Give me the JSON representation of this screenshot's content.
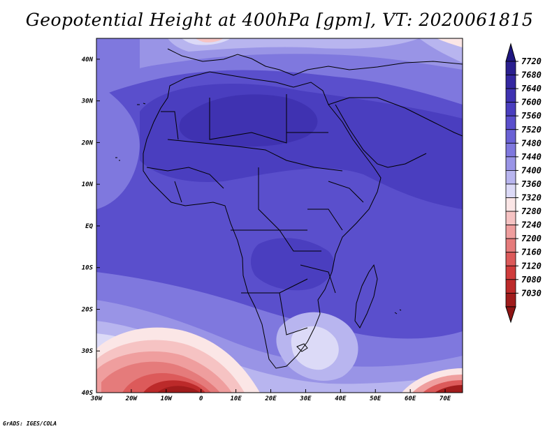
{
  "title": "Geopotential Height at 400hPa [gpm], VT: 2020061815",
  "credit": "GrADS: IGES/COLA",
  "map": {
    "extent": {
      "lon": [
        -30,
        75
      ],
      "lat": [
        -40,
        45
      ]
    },
    "lon_ticks": [
      {
        "value": -30,
        "label": "30W"
      },
      {
        "value": -20,
        "label": "20W"
      },
      {
        "value": -10,
        "label": "10W"
      },
      {
        "value": 0,
        "label": "0"
      },
      {
        "value": 10,
        "label": "10E"
      },
      {
        "value": 20,
        "label": "20E"
      },
      {
        "value": 30,
        "label": "30E"
      },
      {
        "value": 40,
        "label": "40E"
      },
      {
        "value": 50,
        "label": "50E"
      },
      {
        "value": 60,
        "label": "60E"
      },
      {
        "value": 70,
        "label": "70E"
      }
    ],
    "lat_ticks": [
      {
        "value": 40,
        "label": "40N"
      },
      {
        "value": 30,
        "label": "30N"
      },
      {
        "value": 20,
        "label": "20N"
      },
      {
        "value": 10,
        "label": "10N"
      },
      {
        "value": 0,
        "label": "EQ"
      },
      {
        "value": -10,
        "label": "10S"
      },
      {
        "value": -20,
        "label": "20S"
      },
      {
        "value": -30,
        "label": "30S"
      },
      {
        "value": -40,
        "label": "40S"
      }
    ]
  },
  "colorbar": {
    "levels": [
      {
        "label": "7720",
        "color": "#2a1f8f"
      },
      {
        "label": "7680",
        "color": "#3427a1"
      },
      {
        "label": "7640",
        "color": "#3f32b1"
      },
      {
        "label": "7600",
        "color": "#4a3ebf"
      },
      {
        "label": "7560",
        "color": "#5a4fcc"
      },
      {
        "label": "7520",
        "color": "#6a61d5"
      },
      {
        "label": "7480",
        "color": "#7f78de"
      },
      {
        "label": "7440",
        "color": "#9994e6"
      },
      {
        "label": "7400",
        "color": "#b8b5ef"
      },
      {
        "label": "7360",
        "color": "#dcdaf7"
      },
      {
        "label": "7320",
        "color": "#fbe6e6"
      },
      {
        "label": "7280",
        "color": "#f6c3c3"
      },
      {
        "label": "7240",
        "color": "#ef9e9e"
      },
      {
        "label": "7200",
        "color": "#e57b7b"
      },
      {
        "label": "7160",
        "color": "#dc5a5a"
      },
      {
        "label": "7120",
        "color": "#d03c3c"
      },
      {
        "label": "7080",
        "color": "#bc2a2a"
      },
      {
        "label": "7030",
        "color": "#a01c1c"
      }
    ],
    "top_color": "#1f1680",
    "bottom_color": "#8e1414"
  },
  "fill_colors": {
    "background": "#5a4fcc",
    "dark": "#4a3ebf",
    "darker": "#3f32b1",
    "light": "#7f78de",
    "lighter": "#9994e6",
    "pale": "#b8b5ef",
    "verypale": "#dcdaf7",
    "pink1": "#fbe6e6",
    "pink2": "#f6c3c3",
    "pink3": "#ef9e9e",
    "red1": "#e57b7b",
    "red2": "#dc5a5a",
    "red3": "#bc2a2a",
    "red4": "#a01c1c"
  }
}
